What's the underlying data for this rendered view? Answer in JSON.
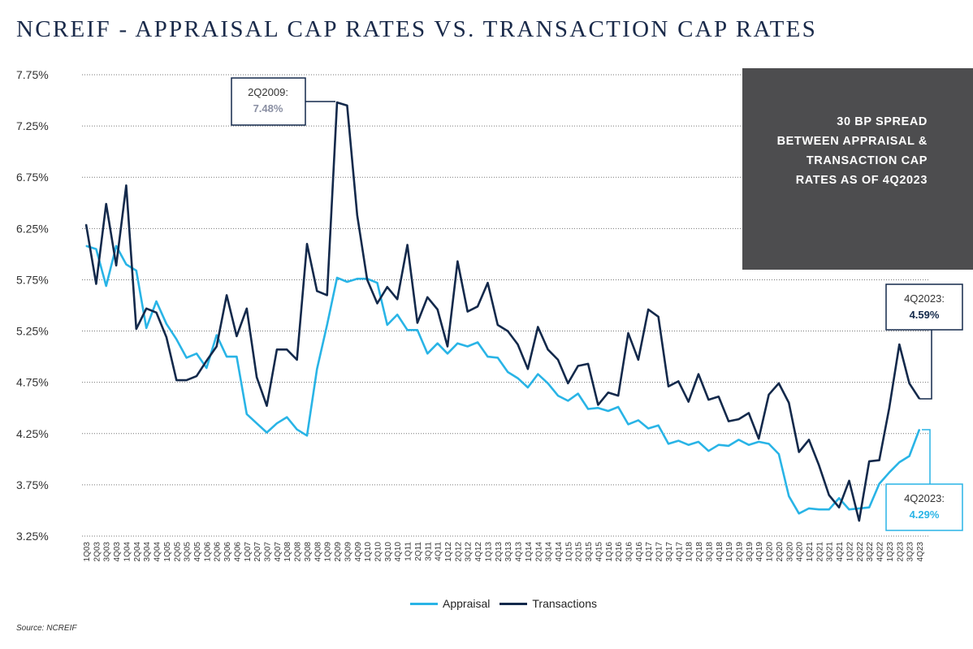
{
  "title": "NCREIF - APPRAISAL CAP RATES VS. TRANSACTION CAP RATES",
  "callout_text": "30 BP SPREAD BETWEEN APPRAISAL & TRANSACTION CAP RATES AS OF 4Q2023",
  "source": "Source: NCREIF",
  "legend": {
    "appraisal": "Appraisal",
    "transactions": "Transactions"
  },
  "colors": {
    "appraisal": "#29b4e6",
    "transactions": "#13294b",
    "grid": "#777777",
    "callout_bg": "#4d4d4f"
  },
  "chart_data": {
    "type": "line",
    "ylim": [
      3.25,
      7.75
    ],
    "yticks": [
      "3.25%",
      "3.75%",
      "4.25%",
      "4.75%",
      "5.25%",
      "5.75%",
      "6.25%",
      "6.75%",
      "7.25%",
      "7.75%"
    ],
    "x_tick_labels": [
      "1Q03",
      "2Q03",
      "3Q03",
      "4Q03",
      "1Q04",
      "2Q04",
      "3Q04",
      "4Q04",
      "1Q05",
      "2Q05",
      "3Q05",
      "4Q05",
      "1Q06",
      "2Q06",
      "3Q06",
      "4Q06",
      "1Q07",
      "2Q07",
      "3Q07",
      "4Q07",
      "1Q08",
      "2Q08",
      "3Q08",
      "4Q08",
      "1Q09",
      "2Q09",
      "3Q09",
      "4Q09",
      "1Q10",
      "2Q10",
      "3Q10",
      "4Q10",
      "1Q11",
      "2Q11",
      "3Q11",
      "4Q11",
      "1Q12",
      "2Q12",
      "3Q12",
      "4Q12",
      "1Q13",
      "2Q13",
      "3Q13",
      "4Q13",
      "1Q14",
      "2Q14",
      "3Q14",
      "4Q14",
      "1Q15",
      "2Q15",
      "3Q15",
      "4Q15",
      "1Q16",
      "2Q16",
      "3Q16",
      "4Q16",
      "1Q17",
      "2Q17",
      "3Q17",
      "4Q17",
      "1Q18",
      "2Q18",
      "3Q18",
      "4Q18",
      "1Q19",
      "2Q19",
      "3Q19",
      "4Q19",
      "1Q20",
      "2Q20",
      "3Q20",
      "4Q20",
      "1Q21",
      "2Q21",
      "3Q21",
      "4Q21",
      "1Q22",
      "2Q22",
      "3Q22",
      "4Q22",
      "1Q23",
      "2Q23",
      "3Q23",
      "4Q23"
    ],
    "series": [
      {
        "name": "Appraisal",
        "values": [
          6.08,
          6.05,
          5.69,
          6.08,
          5.9,
          5.84,
          5.28,
          5.54,
          5.32,
          5.17,
          4.99,
          5.03,
          4.89,
          5.21,
          5.0,
          5.0,
          4.44,
          4.35,
          4.26,
          4.35,
          4.41,
          4.29,
          4.23,
          4.88,
          5.31,
          5.77,
          5.73,
          5.76,
          5.76,
          5.72,
          5.31,
          5.41,
          5.26,
          5.26,
          5.03,
          5.13,
          5.03,
          5.13,
          5.1,
          5.14,
          5.0,
          4.99,
          4.85,
          4.79,
          4.7,
          4.83,
          4.74,
          4.62,
          4.57,
          4.64,
          4.49,
          4.5,
          4.47,
          4.51,
          4.34,
          4.38,
          4.3,
          4.33,
          4.15,
          4.18,
          4.14,
          4.17,
          4.08,
          4.14,
          4.13,
          4.19,
          4.14,
          4.17,
          4.15,
          4.05,
          3.64,
          3.47,
          3.52,
          3.51,
          3.51,
          3.62,
          3.51,
          3.52,
          3.53,
          3.76,
          3.87,
          3.97,
          4.03,
          4.29
        ]
      },
      {
        "name": "Transactions",
        "values": [
          6.29,
          5.71,
          6.49,
          5.89,
          6.67,
          5.27,
          5.47,
          5.43,
          5.19,
          4.77,
          4.77,
          4.81,
          4.96,
          5.1,
          5.6,
          5.2,
          5.47,
          4.8,
          4.52,
          5.07,
          5.07,
          4.97,
          6.1,
          5.64,
          5.6,
          7.48,
          7.45,
          6.38,
          5.75,
          5.52,
          5.68,
          5.56,
          6.09,
          5.33,
          5.58,
          5.46,
          5.1,
          5.93,
          5.44,
          5.49,
          5.72,
          5.31,
          5.25,
          5.12,
          4.88,
          5.29,
          5.07,
          4.97,
          4.74,
          4.91,
          4.93,
          4.53,
          4.65,
          4.62,
          5.23,
          4.97,
          5.46,
          5.39,
          4.71,
          4.76,
          4.56,
          4.83,
          4.58,
          4.61,
          4.37,
          4.39,
          4.45,
          4.2,
          4.63,
          4.74,
          4.55,
          4.07,
          4.19,
          3.94,
          3.65,
          3.53,
          3.79,
          3.4,
          3.98,
          3.99,
          4.5,
          5.12,
          4.74,
          4.59
        ]
      }
    ],
    "annotations": [
      {
        "label": "2Q2009:",
        "value": "7.48%"
      },
      {
        "label": "4Q2023:",
        "value": "4.59%"
      },
      {
        "label": "4Q2023:",
        "value": "4.29%"
      }
    ]
  }
}
